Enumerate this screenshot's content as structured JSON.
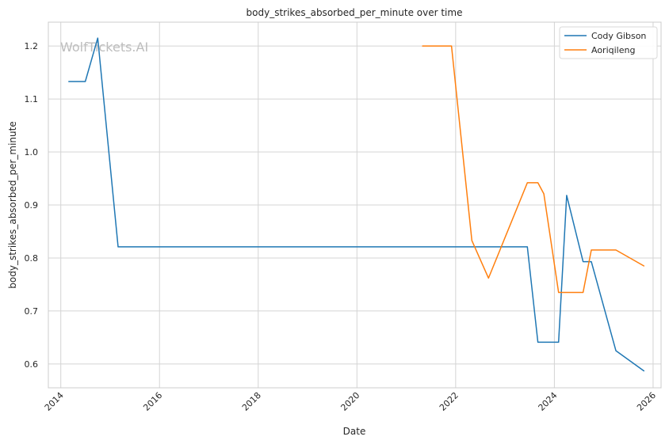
{
  "chart_data": {
    "type": "line",
    "title": "body_strikes_absorbed_per_minute over time",
    "xlabel": "Date",
    "ylabel": "body_strikes_absorbed_per_minute",
    "watermark": "WolfTickets.AI",
    "xlim": [
      "2013-10-01",
      "2026-03-01"
    ],
    "ylim": [
      0.555,
      1.245
    ],
    "x_ticks": [
      "2014",
      "2016",
      "2018",
      "2020",
      "2022",
      "2024",
      "2026"
    ],
    "y_ticks": [
      0.6,
      0.7,
      0.8,
      0.9,
      1.0,
      1.1,
      1.2
    ],
    "y_tick_labels": [
      "0.6",
      "0.7",
      "0.8",
      "0.9",
      "1.0",
      "1.1",
      "1.2"
    ],
    "grid": true,
    "legend_position": "top-right",
    "series": [
      {
        "name": "Cody Gibson",
        "color": "#1f77b4",
        "points": [
          [
            "2014-03-01",
            1.133
          ],
          [
            "2014-07-01",
            1.133
          ],
          [
            "2014-10-01",
            1.215
          ],
          [
            "2015-03-01",
            0.821
          ],
          [
            "2023-06-15",
            0.821
          ],
          [
            "2023-09-01",
            0.641
          ],
          [
            "2024-02-01",
            0.641
          ],
          [
            "2024-04-01",
            0.918
          ],
          [
            "2024-08-01",
            0.793
          ],
          [
            "2024-10-01",
            0.793
          ],
          [
            "2025-04-01",
            0.625
          ],
          [
            "2025-10-25",
            0.587
          ]
        ]
      },
      {
        "name": "Aoriqileng",
        "color": "#ff7f0e",
        "points": [
          [
            "2021-05-01",
            1.2
          ],
          [
            "2021-12-01",
            1.2
          ],
          [
            "2022-05-01",
            0.833
          ],
          [
            "2022-09-01",
            0.762
          ],
          [
            "2023-06-15",
            0.942
          ],
          [
            "2023-09-01",
            0.942
          ],
          [
            "2023-10-15",
            0.921
          ],
          [
            "2024-02-01",
            0.735
          ],
          [
            "2024-08-01",
            0.735
          ],
          [
            "2024-10-01",
            0.815
          ],
          [
            "2025-04-01",
            0.815
          ],
          [
            "2025-10-25",
            0.785
          ]
        ]
      }
    ]
  }
}
